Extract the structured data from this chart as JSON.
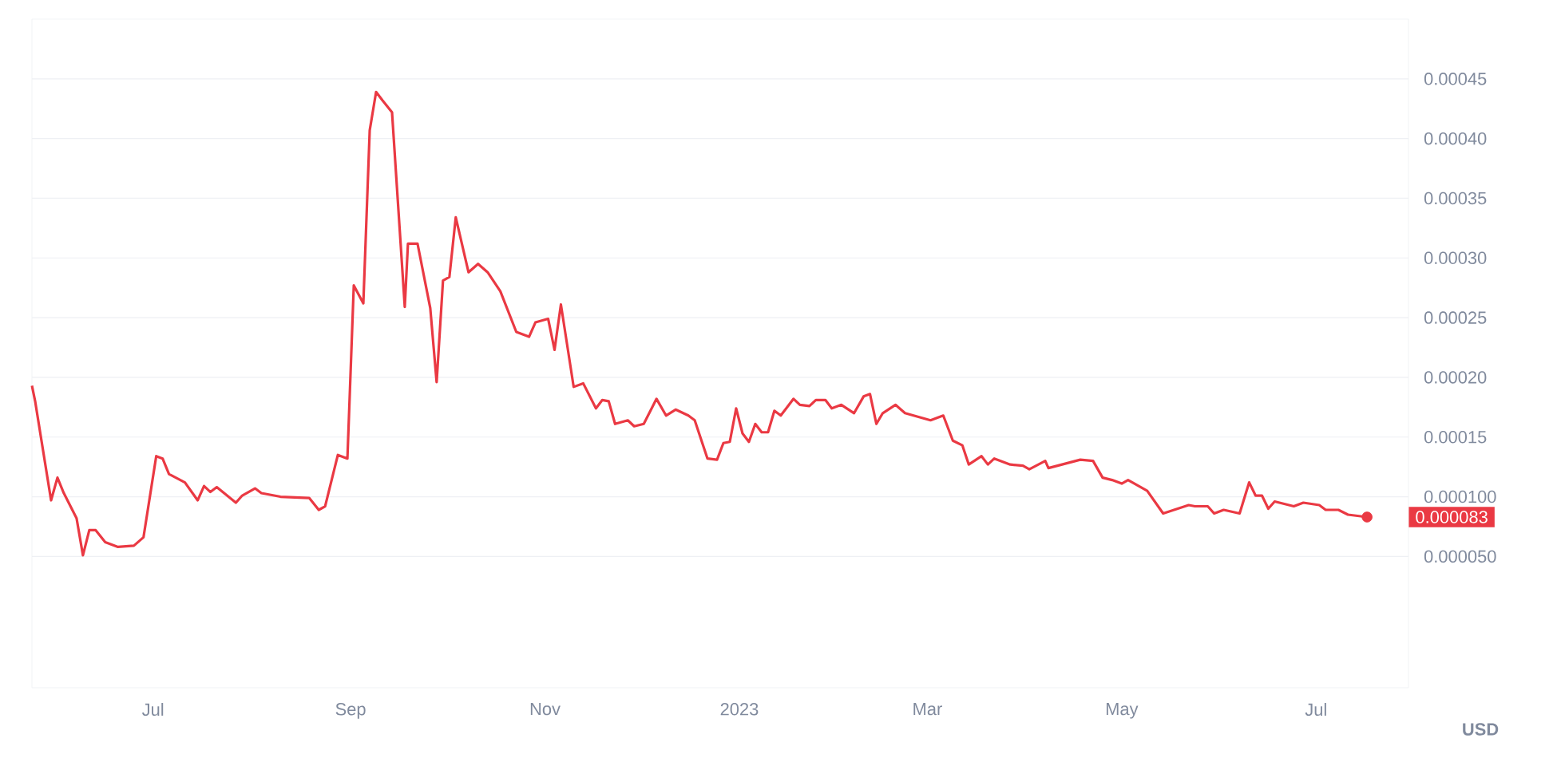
{
  "chart_data": {
    "type": "line",
    "x": [
      "2022-05-24",
      "2022-05-25",
      "2022-05-30",
      "2022-06-01",
      "2022-06-03",
      "2022-06-07",
      "2022-06-09",
      "2022-06-11",
      "2022-06-13",
      "2022-06-16",
      "2022-06-20",
      "2022-06-25",
      "2022-06-28",
      "2022-07-02",
      "2022-07-04",
      "2022-07-06",
      "2022-07-11",
      "2022-07-15",
      "2022-07-17",
      "2022-07-19",
      "2022-07-21",
      "2022-07-27",
      "2022-07-29",
      "2022-08-02",
      "2022-08-04",
      "2022-08-10",
      "2022-08-19",
      "2022-08-22",
      "2022-08-24",
      "2022-08-28",
      "2022-08-31",
      "2022-09-02",
      "2022-09-05",
      "2022-09-07",
      "2022-09-09",
      "2022-09-11",
      "2022-09-14",
      "2022-09-18",
      "2022-09-19",
      "2022-09-22",
      "2022-09-26",
      "2022-09-28",
      "2022-09-30",
      "2022-10-02",
      "2022-10-04",
      "2022-10-08",
      "2022-10-11",
      "2022-10-14",
      "2022-10-18",
      "2022-10-23",
      "2022-10-27",
      "2022-10-29",
      "2022-11-02",
      "2022-11-04",
      "2022-11-06",
      "2022-11-10",
      "2022-11-13",
      "2022-11-17",
      "2022-11-19",
      "2022-11-21",
      "2022-11-23",
      "2022-11-27",
      "2022-11-29",
      "2022-12-02",
      "2022-12-06",
      "2022-12-09",
      "2022-12-12",
      "2022-12-16",
      "2022-12-18",
      "2022-12-22",
      "2022-12-25",
      "2022-12-27",
      "2022-12-29",
      "2022-12-31",
      "2023-01-02",
      "2023-01-04",
      "2023-01-06",
      "2023-01-08",
      "2023-01-10",
      "2023-01-12",
      "2023-01-14",
      "2023-01-18",
      "2023-01-20",
      "2023-01-23",
      "2023-01-25",
      "2023-01-28",
      "2023-01-30",
      "2023-02-02",
      "2023-02-06",
      "2023-02-09",
      "2023-02-11",
      "2023-02-13",
      "2023-02-15",
      "2023-02-19",
      "2023-02-22",
      "2023-03-02",
      "2023-03-06",
      "2023-03-09",
      "2023-03-12",
      "2023-03-14",
      "2023-03-18",
      "2023-03-20",
      "2023-03-22",
      "2023-03-27",
      "2023-03-31",
      "2023-04-02",
      "2023-04-07",
      "2023-04-08",
      "2023-04-18",
      "2023-04-22",
      "2023-04-25",
      "2023-04-28",
      "2023-05-01",
      "2023-05-03",
      "2023-05-09",
      "2023-05-14",
      "2023-05-22",
      "2023-05-24",
      "2023-05-28",
      "2023-05-30",
      "2023-06-02",
      "2023-06-07",
      "2023-06-10",
      "2023-06-12",
      "2023-06-14",
      "2023-06-16",
      "2023-06-18",
      "2023-06-24",
      "2023-06-27",
      "2023-07-02",
      "2023-07-04",
      "2023-07-08",
      "2023-07-11",
      "2023-07-17"
    ],
    "series": [
      {
        "color": "#ea3943",
        "values": [
          0.000193,
          0.00018,
          9.7e-05,
          0.000116,
          0.000103,
          8.2e-05,
          5.1e-05,
          7.2e-05,
          7.2e-05,
          6.2e-05,
          5.8e-05,
          5.9e-05,
          6.6e-05,
          0.000134,
          0.000132,
          0.000119,
          0.000112,
          9.7e-05,
          0.000109,
          0.000104,
          0.000108,
          9.5e-05,
          0.000101,
          0.000107,
          0.000103,
          0.0001,
          9.9e-05,
          8.9e-05,
          9.2e-05,
          0.000135,
          0.000132,
          0.000277,
          0.000262,
          0.000407,
          0.000439,
          0.000432,
          0.000422,
          0.000259,
          0.000312,
          0.000312,
          0.000258,
          0.000196,
          0.000281,
          0.000284,
          0.000334,
          0.000288,
          0.000295,
          0.000288,
          0.000272,
          0.000238,
          0.000234,
          0.000246,
          0.000249,
          0.000223,
          0.000261,
          0.000192,
          0.000195,
          0.000174,
          0.000181,
          0.00018,
          0.000161,
          0.000164,
          0.000159,
          0.000161,
          0.000182,
          0.000168,
          0.000173,
          0.000168,
          0.000164,
          0.000132,
          0.000131,
          0.000145,
          0.000146,
          0.000174,
          0.000153,
          0.000146,
          0.000161,
          0.000154,
          0.000154,
          0.000172,
          0.000168,
          0.000182,
          0.000177,
          0.000176,
          0.000181,
          0.000181,
          0.000174,
          0.000177,
          0.00017,
          0.000184,
          0.000186,
          0.000161,
          0.00017,
          0.000177,
          0.00017,
          0.000164,
          0.000168,
          0.000147,
          0.000143,
          0.000127,
          0.000134,
          0.000127,
          0.000132,
          0.000127,
          0.000126,
          0.000123,
          0.00013,
          0.000124,
          0.000131,
          0.00013,
          0.000116,
          0.000114,
          0.000111,
          0.000114,
          0.000105,
          8.6e-05,
          9.3e-05,
          9.2e-05,
          9.2e-05,
          8.6e-05,
          8.9e-05,
          8.6e-05,
          0.000112,
          0.000101,
          0.000101,
          9e-05,
          9.6e-05,
          9.2e-05,
          9.5e-05,
          9.3e-05,
          8.9e-05,
          8.9e-05,
          8.5e-05,
          8.3e-05
        ]
      }
    ],
    "xlim": [
      "2022-05-24",
      "2023-07-30"
    ],
    "xticks": [
      {
        "value": "2022-07-01",
        "label": "Jul"
      },
      {
        "value": "2022-09-01",
        "label": "Sep"
      },
      {
        "value": "2022-11-01",
        "label": "Nov"
      },
      {
        "value": "2023-01-01",
        "label": "2023"
      },
      {
        "value": "2023-03-01",
        "label": "Mar"
      },
      {
        "value": "2023-05-01",
        "label": "May"
      },
      {
        "value": "2023-07-01",
        "label": "Jul"
      }
    ],
    "ylim": [
      -6e-05,
      0.0005
    ],
    "yticks": [
      {
        "value": 5e-05,
        "label": "0.000050"
      },
      {
        "value": 0.0001,
        "label": "0.000100"
      },
      {
        "value": 0.00015,
        "label": "0.00015"
      },
      {
        "value": 0.0002,
        "label": "0.00020"
      },
      {
        "value": 0.00025,
        "label": "0.00025"
      },
      {
        "value": 0.0003,
        "label": "0.00030"
      },
      {
        "value": 0.00035,
        "label": "0.00035"
      },
      {
        "value": 0.0004,
        "label": "0.00040"
      },
      {
        "value": 0.00045,
        "label": "0.00045"
      }
    ],
    "grid": "y",
    "ylabel": "USD",
    "annotations": [
      {
        "text": "0.000083",
        "x": "2023-07-17",
        "y": 8.3e-05
      }
    ]
  }
}
